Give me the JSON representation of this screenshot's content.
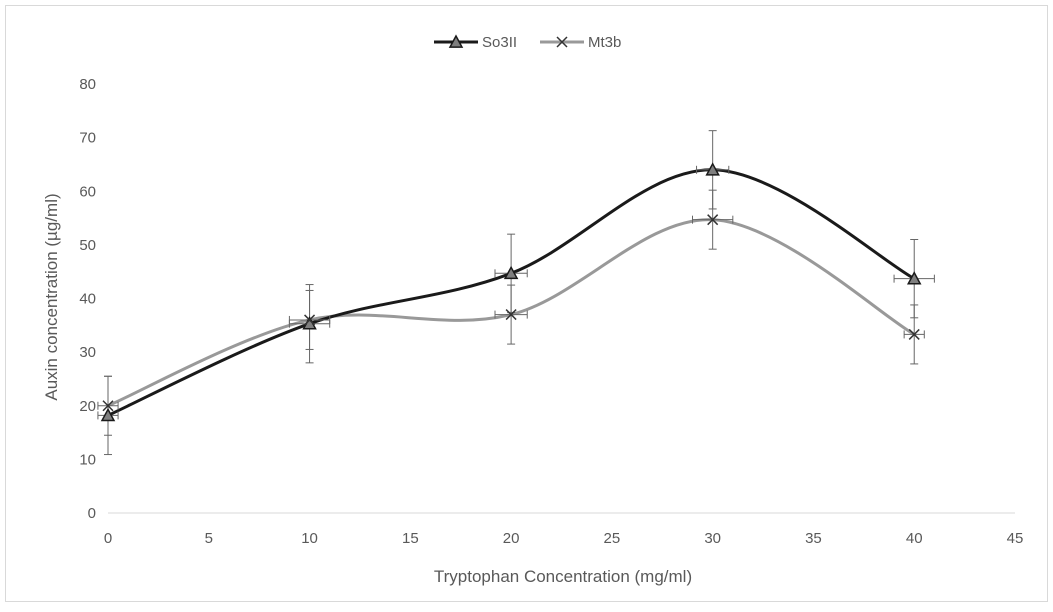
{
  "chart_data": {
    "type": "scatter",
    "title": "",
    "xlabel": "Tryptophan Concentration (mg/ml)",
    "ylabel": "Auxin concentration (µg/ml)",
    "xlim": [
      0,
      45
    ],
    "ylim": [
      0,
      80
    ],
    "x_ticks": [
      0,
      5,
      10,
      15,
      20,
      25,
      30,
      35,
      40,
      45
    ],
    "y_ticks": [
      0,
      10,
      20,
      30,
      40,
      50,
      60,
      70,
      80
    ],
    "grid": false,
    "legend_position": "top-center",
    "smoothed_lines": true,
    "series": [
      {
        "name": "So3II",
        "color": "#1a1a1a",
        "marker": "triangle",
        "x": [
          0,
          10,
          20,
          30,
          40
        ],
        "y": [
          18.2,
          35.3,
          44.7,
          64.0,
          43.7
        ],
        "y_error": [
          7.3,
          7.3,
          7.3,
          7.3,
          7.3
        ],
        "x_error": [
          0.5,
          1.0,
          0.8,
          0.8,
          1.0
        ]
      },
      {
        "name": "Mt3b",
        "color": "#999999",
        "marker": "x",
        "x": [
          0,
          10,
          20,
          30,
          40
        ],
        "y": [
          20.0,
          36.0,
          37.0,
          54.7,
          33.3
        ],
        "y_error": [
          5.5,
          5.5,
          5.5,
          5.5,
          5.5
        ],
        "x_error": [
          0.5,
          1.0,
          0.8,
          1.0,
          0.5
        ]
      }
    ]
  }
}
